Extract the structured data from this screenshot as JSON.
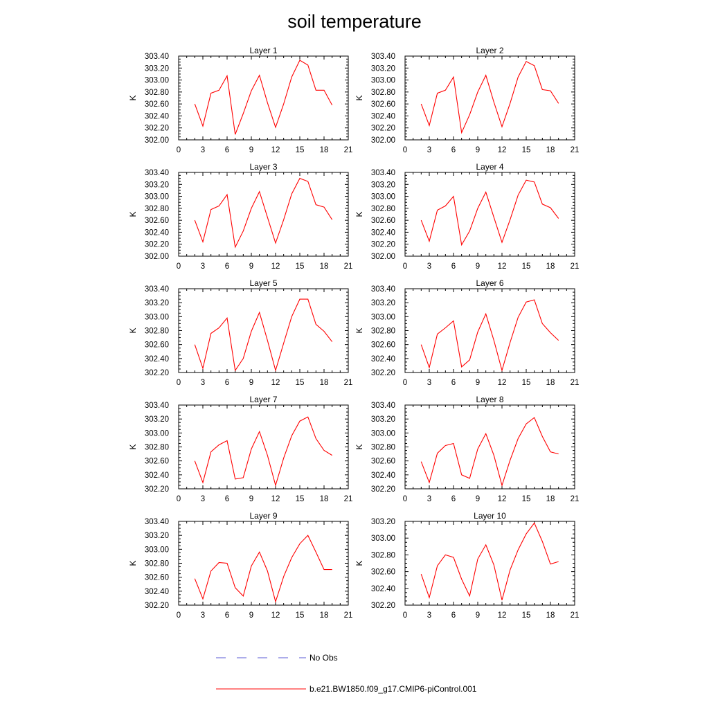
{
  "title": "soil temperature",
  "ylabel": "K",
  "chart_data": [
    {
      "type": "line",
      "title": "Layer 1",
      "ylabel": "K",
      "xlim": [
        0,
        21
      ],
      "ylim": [
        302.0,
        303.4
      ],
      "xticks": [
        0,
        3,
        6,
        9,
        12,
        15,
        18,
        21
      ],
      "yticks": [
        302.0,
        302.2,
        302.4,
        302.6,
        302.8,
        303.0,
        303.2,
        303.4
      ],
      "series": [
        {
          "name": "b.e21.BW1850.f09_g17.CMIP6-piControl.001",
          "x": [
            2,
            3,
            4,
            5,
            6,
            7,
            8,
            9,
            10,
            11,
            12,
            13,
            14,
            15,
            16,
            17,
            18,
            19
          ],
          "y": [
            302.6,
            302.23,
            302.78,
            302.83,
            303.07,
            302.09,
            302.44,
            302.82,
            303.08,
            302.62,
            302.21,
            302.6,
            303.05,
            303.33,
            303.25,
            302.83,
            302.83,
            302.58
          ]
        }
      ]
    },
    {
      "type": "line",
      "title": "Layer 2",
      "ylabel": "K",
      "xlim": [
        0,
        21
      ],
      "ylim": [
        302.0,
        303.4
      ],
      "xticks": [
        0,
        3,
        6,
        9,
        12,
        15,
        18,
        21
      ],
      "yticks": [
        302.0,
        302.2,
        302.4,
        302.6,
        302.8,
        303.0,
        303.2,
        303.4
      ],
      "series": [
        {
          "name": "b.e21.BW1850.f09_g17.CMIP6-piControl.001",
          "x": [
            2,
            3,
            4,
            5,
            6,
            7,
            8,
            9,
            10,
            11,
            12,
            13,
            14,
            15,
            16,
            17,
            18,
            19
          ],
          "y": [
            302.6,
            302.24,
            302.78,
            302.83,
            303.05,
            302.12,
            302.42,
            302.8,
            303.08,
            302.63,
            302.22,
            302.61,
            303.05,
            303.31,
            303.24,
            302.84,
            302.82,
            302.61
          ]
        }
      ]
    },
    {
      "type": "line",
      "title": "Layer 3",
      "ylabel": "K",
      "xlim": [
        0,
        21
      ],
      "ylim": [
        302.0,
        303.4
      ],
      "xticks": [
        0,
        3,
        6,
        9,
        12,
        15,
        18,
        21
      ],
      "yticks": [
        302.0,
        302.2,
        302.4,
        302.6,
        302.8,
        303.0,
        303.2,
        303.4
      ],
      "series": [
        {
          "name": "b.e21.BW1850.f09_g17.CMIP6-piControl.001",
          "x": [
            2,
            3,
            4,
            5,
            6,
            7,
            8,
            9,
            10,
            11,
            12,
            13,
            14,
            15,
            16,
            17,
            18,
            19
          ],
          "y": [
            302.6,
            302.24,
            302.78,
            302.84,
            303.03,
            302.15,
            302.42,
            302.8,
            303.08,
            302.65,
            302.22,
            302.61,
            303.04,
            303.3,
            303.25,
            302.86,
            302.82,
            302.61
          ]
        }
      ]
    },
    {
      "type": "line",
      "title": "Layer 4",
      "ylabel": "K",
      "xlim": [
        0,
        21
      ],
      "ylim": [
        302.0,
        303.4
      ],
      "xticks": [
        0,
        3,
        6,
        9,
        12,
        15,
        18,
        21
      ],
      "yticks": [
        302.0,
        302.2,
        302.4,
        302.6,
        302.8,
        303.0,
        303.2,
        303.4
      ],
      "series": [
        {
          "name": "b.e21.BW1850.f09_g17.CMIP6-piControl.001",
          "x": [
            2,
            3,
            4,
            5,
            6,
            7,
            8,
            9,
            10,
            11,
            12,
            13,
            14,
            15,
            16,
            17,
            18,
            19
          ],
          "y": [
            302.6,
            302.25,
            302.77,
            302.84,
            303.0,
            302.19,
            302.42,
            302.8,
            303.07,
            302.65,
            302.23,
            302.61,
            303.02,
            303.27,
            303.24,
            302.87,
            302.81,
            302.63
          ]
        }
      ]
    },
    {
      "type": "line",
      "title": "Layer 5",
      "ylabel": "K",
      "xlim": [
        0,
        21
      ],
      "ylim": [
        302.2,
        303.4
      ],
      "xticks": [
        0,
        3,
        6,
        9,
        12,
        15,
        18,
        21
      ],
      "yticks": [
        302.2,
        302.4,
        302.6,
        302.8,
        303.0,
        303.2,
        303.4
      ],
      "series": [
        {
          "name": "b.e21.BW1850.f09_g17.CMIP6-piControl.001",
          "x": [
            2,
            3,
            4,
            5,
            6,
            7,
            8,
            9,
            10,
            11,
            12,
            13,
            14,
            15,
            16,
            17,
            18,
            19
          ],
          "y": [
            302.6,
            302.26,
            302.76,
            302.84,
            302.98,
            302.23,
            302.4,
            302.79,
            303.06,
            302.66,
            302.23,
            302.62,
            303.0,
            303.25,
            303.25,
            302.89,
            302.79,
            302.64
          ]
        }
      ]
    },
    {
      "type": "line",
      "title": "Layer 6",
      "ylabel": "K",
      "xlim": [
        0,
        21
      ],
      "ylim": [
        302.2,
        303.4
      ],
      "xticks": [
        0,
        3,
        6,
        9,
        12,
        15,
        18,
        21
      ],
      "yticks": [
        302.2,
        302.4,
        302.6,
        302.8,
        303.0,
        303.2,
        303.4
      ],
      "series": [
        {
          "name": "b.e21.BW1850.f09_g17.CMIP6-piControl.001",
          "x": [
            2,
            3,
            4,
            5,
            6,
            7,
            8,
            9,
            10,
            11,
            12,
            13,
            14,
            15,
            16,
            17,
            18,
            19
          ],
          "y": [
            302.6,
            302.27,
            302.75,
            302.84,
            302.94,
            302.28,
            302.38,
            302.78,
            303.04,
            302.66,
            302.23,
            302.63,
            302.99,
            303.21,
            303.24,
            302.9,
            302.77,
            302.66
          ]
        }
      ]
    },
    {
      "type": "line",
      "title": "Layer 7",
      "ylabel": "K",
      "xlim": [
        0,
        21
      ],
      "ylim": [
        302.2,
        303.4
      ],
      "xticks": [
        0,
        3,
        6,
        9,
        12,
        15,
        18,
        21
      ],
      "yticks": [
        302.2,
        302.4,
        302.6,
        302.8,
        303.0,
        303.2,
        303.4
      ],
      "series": [
        {
          "name": "b.e21.BW1850.f09_g17.CMIP6-piControl.001",
          "x": [
            2,
            3,
            4,
            5,
            6,
            7,
            8,
            9,
            10,
            11,
            12,
            13,
            14,
            15,
            16,
            17,
            18,
            19
          ],
          "y": [
            302.6,
            302.29,
            302.73,
            302.83,
            302.89,
            302.34,
            302.36,
            302.77,
            303.02,
            302.68,
            302.25,
            302.64,
            302.96,
            303.17,
            303.23,
            302.92,
            302.75,
            302.68
          ]
        }
      ]
    },
    {
      "type": "line",
      "title": "Layer 8",
      "ylabel": "K",
      "xlim": [
        0,
        21
      ],
      "ylim": [
        302.2,
        303.4
      ],
      "xticks": [
        0,
        3,
        6,
        9,
        12,
        15,
        18,
        21
      ],
      "yticks": [
        302.2,
        302.4,
        302.6,
        302.8,
        303.0,
        303.2,
        303.4
      ],
      "series": [
        {
          "name": "b.e21.BW1850.f09_g17.CMIP6-piControl.001",
          "x": [
            2,
            3,
            4,
            5,
            6,
            7,
            8,
            9,
            10,
            11,
            12,
            13,
            14,
            15,
            16,
            17,
            18,
            19
          ],
          "y": [
            302.59,
            302.29,
            302.71,
            302.82,
            302.85,
            302.4,
            302.35,
            302.77,
            302.99,
            302.68,
            302.25,
            302.61,
            302.92,
            303.13,
            303.22,
            302.95,
            302.73,
            302.7
          ]
        }
      ]
    },
    {
      "type": "line",
      "title": "Layer 9",
      "ylabel": "K",
      "xlim": [
        0,
        21
      ],
      "ylim": [
        302.2,
        303.4
      ],
      "xticks": [
        0,
        3,
        6,
        9,
        12,
        15,
        18,
        21
      ],
      "yticks": [
        302.2,
        302.4,
        302.6,
        302.8,
        303.0,
        303.2,
        303.4
      ],
      "series": [
        {
          "name": "b.e21.BW1850.f09_g17.CMIP6-piControl.001",
          "x": [
            2,
            3,
            4,
            5,
            6,
            7,
            8,
            9,
            10,
            11,
            12,
            13,
            14,
            15,
            16,
            17,
            18,
            19
          ],
          "y": [
            302.58,
            302.29,
            302.69,
            302.81,
            302.8,
            302.45,
            302.33,
            302.76,
            302.96,
            302.69,
            302.25,
            302.61,
            302.88,
            303.08,
            303.2,
            302.96,
            302.71,
            302.71
          ]
        }
      ]
    },
    {
      "type": "line",
      "title": "Layer 10",
      "ylabel": "K",
      "xlim": [
        0,
        21
      ],
      "ylim": [
        302.2,
        303.2
      ],
      "xticks": [
        0,
        3,
        6,
        9,
        12,
        15,
        18,
        21
      ],
      "yticks": [
        302.2,
        302.4,
        302.6,
        302.8,
        303.0,
        303.2
      ],
      "series": [
        {
          "name": "b.e21.BW1850.f09_g17.CMIP6-piControl.001",
          "x": [
            2,
            3,
            4,
            5,
            6,
            7,
            8,
            9,
            10,
            11,
            12,
            13,
            14,
            15,
            16,
            17,
            18,
            19
          ],
          "y": [
            302.57,
            302.29,
            302.67,
            302.8,
            302.77,
            302.51,
            302.31,
            302.75,
            302.92,
            302.68,
            302.26,
            302.62,
            302.86,
            303.05,
            303.18,
            302.96,
            302.69,
            302.72
          ]
        }
      ]
    }
  ],
  "legend": {
    "placement": "bottom",
    "items": [
      {
        "label": "No Obs",
        "style": "dashed",
        "color": "#5b5bd6"
      },
      {
        "label": "b.e21.BW1850.f09_g17.CMIP6-piControl.001",
        "style": "solid",
        "color": "#ff0000"
      }
    ]
  },
  "colors": {
    "model_line": "#ff0000",
    "obs_line": "#5b5bd6",
    "axis": "#000000"
  }
}
